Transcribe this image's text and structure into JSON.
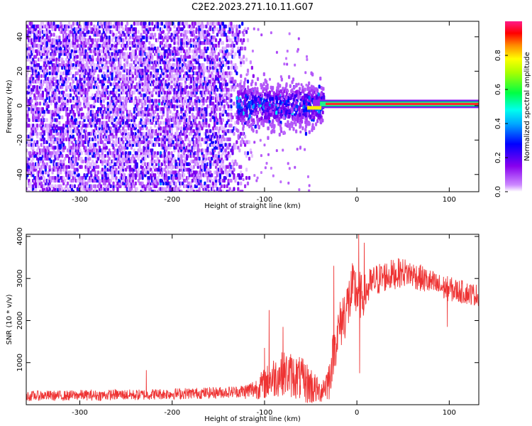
{
  "figure": {
    "title": "C2E2.2023.271.10.11.G07"
  },
  "colors": {
    "snr_line": "#ee3333",
    "stripe_core": "#ff2a2a",
    "stripe_mid": "#22ee88",
    "stripe_edge": "#2222dd"
  },
  "chart_data": [
    {
      "type": "heatmap",
      "title": "C2E2.2023.271.10.11.G07",
      "xlabel": "Height of straight line (km)",
      "ylabel": "Frequency (Hz)",
      "xlim": [
        -358,
        132
      ],
      "ylim": [
        -50,
        49
      ],
      "xticks": [
        -300,
        -200,
        -100,
        0,
        100
      ],
      "xtick_labels": [
        "-300",
        "-200",
        "-100",
        "0",
        "100"
      ],
      "yticks": [
        -40,
        -20,
        0,
        20,
        40
      ],
      "ytick_labels": [
        "-40",
        "-20",
        "0",
        "20",
        "40"
      ],
      "grid": false,
      "colorbar": {
        "label": "Normalized spectral amplitude",
        "range": [
          0,
          1
        ],
        "ticks": [
          0.0,
          0.2,
          0.4,
          0.6,
          0.8
        ],
        "tick_labels": [
          "0.0",
          "0.2",
          "0.4",
          "0.6",
          "0.8"
        ],
        "colormap": "rainbow (violet-blue-cyan-green-yellow-red-pink)"
      },
      "features": {
        "noise_region_x": [
          -358,
          -125
        ],
        "noise_amplitude_typical": 0.1,
        "vertical_streak_x": -213,
        "transition_region_x": [
          -130,
          -45
        ],
        "dominant_line": {
          "x_start": -40,
          "x_end": 132,
          "frequency": 1,
          "peak_amplitude": 0.95
        }
      }
    },
    {
      "type": "line",
      "xlabel": "Height of straight line (km)",
      "ylabel": "SNR (10 * v/v)",
      "xlim": [
        -358,
        132
      ],
      "ylim": [
        0,
        4050
      ],
      "xticks": [
        -300,
        -200,
        -100,
        0,
        100
      ],
      "xtick_labels": [
        "-300",
        "-200",
        "-100",
        "0",
        "100"
      ],
      "yticks": [
        1000,
        2000,
        3000,
        4000
      ],
      "ytick_labels": [
        "1000",
        "2000",
        "3000",
        "4000"
      ],
      "grid": false,
      "series": [
        {
          "x": [
            -358,
            -340,
            -320,
            -300,
            -280,
            -260,
            -240,
            -220,
            -200,
            -180,
            -160,
            -140,
            -120,
            -110,
            -100,
            -90,
            -80,
            -70,
            -60,
            -50,
            -40,
            -30,
            -25,
            -20,
            -15,
            -10,
            -5,
            0,
            5,
            10,
            15,
            20,
            30,
            40,
            50,
            60,
            70,
            80,
            90,
            100,
            110,
            120,
            132
          ],
          "y": [
            200,
            220,
            210,
            230,
            220,
            240,
            230,
            250,
            260,
            270,
            280,
            300,
            320,
            380,
            500,
            650,
            750,
            700,
            600,
            450,
            300,
            600,
            1300,
            1750,
            2100,
            2350,
            2700,
            2700,
            2550,
            2700,
            2850,
            2950,
            3050,
            3100,
            3150,
            3100,
            3000,
            2900,
            2800,
            2750,
            2700,
            2650,
            2600
          ],
          "spikes": [
            {
              "x": -228,
              "y": 820
            },
            {
              "x": -100,
              "y": 1350
            },
            {
              "x": -95,
              "y": 2250
            },
            {
              "x": -80,
              "y": 1850
            },
            {
              "x": -25,
              "y": 3300
            },
            {
              "x": 2,
              "y": 4050
            },
            {
              "x": 8,
              "y": 3850
            },
            {
              "x": 3,
              "y": 750
            },
            {
              "x": 98,
              "y": 1850
            }
          ],
          "noise_amplitude": {
            "x": [
              -358,
              -130,
              -110,
              -90,
              -70,
              -50,
              -40,
              -30,
              -20,
              -10,
              0,
              10,
              20,
              60,
              100,
              132
            ],
            "y": [
              120,
              140,
              250,
              500,
              550,
              500,
              260,
              500,
              600,
              700,
              650,
              450,
              400,
              330,
              300,
              260
            ]
          }
        }
      ]
    }
  ]
}
